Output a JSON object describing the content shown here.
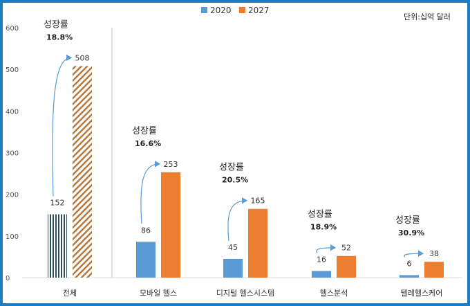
{
  "chart_data": {
    "type": "bar",
    "unit_label": "단위:십억 달러",
    "categories": [
      "전체",
      "모바일 헬스",
      "디지털 헬스시스템",
      "헬스분석",
      "텔레헬스케어"
    ],
    "series": [
      {
        "name": "2020",
        "values": [
          152,
          86,
          45,
          16,
          6
        ],
        "color": "#5b9bd5"
      },
      {
        "name": "2027",
        "values": [
          508,
          253,
          165,
          52,
          38
        ],
        "color": "#ed7d31"
      }
    ],
    "growth_label": "성장률",
    "growth_rates": [
      "18.8%",
      "16.6%",
      "20.5%",
      "18.9%",
      "30.9%"
    ],
    "yticks": [
      0,
      100,
      200,
      300,
      400,
      500,
      600
    ],
    "ylim": [
      0,
      600
    ],
    "legend_position": "top-center",
    "first_category_pattern": {
      "2020": "vertical-stripes #2f4f5f",
      "2027": "diagonal-hatch #b5793f"
    }
  }
}
